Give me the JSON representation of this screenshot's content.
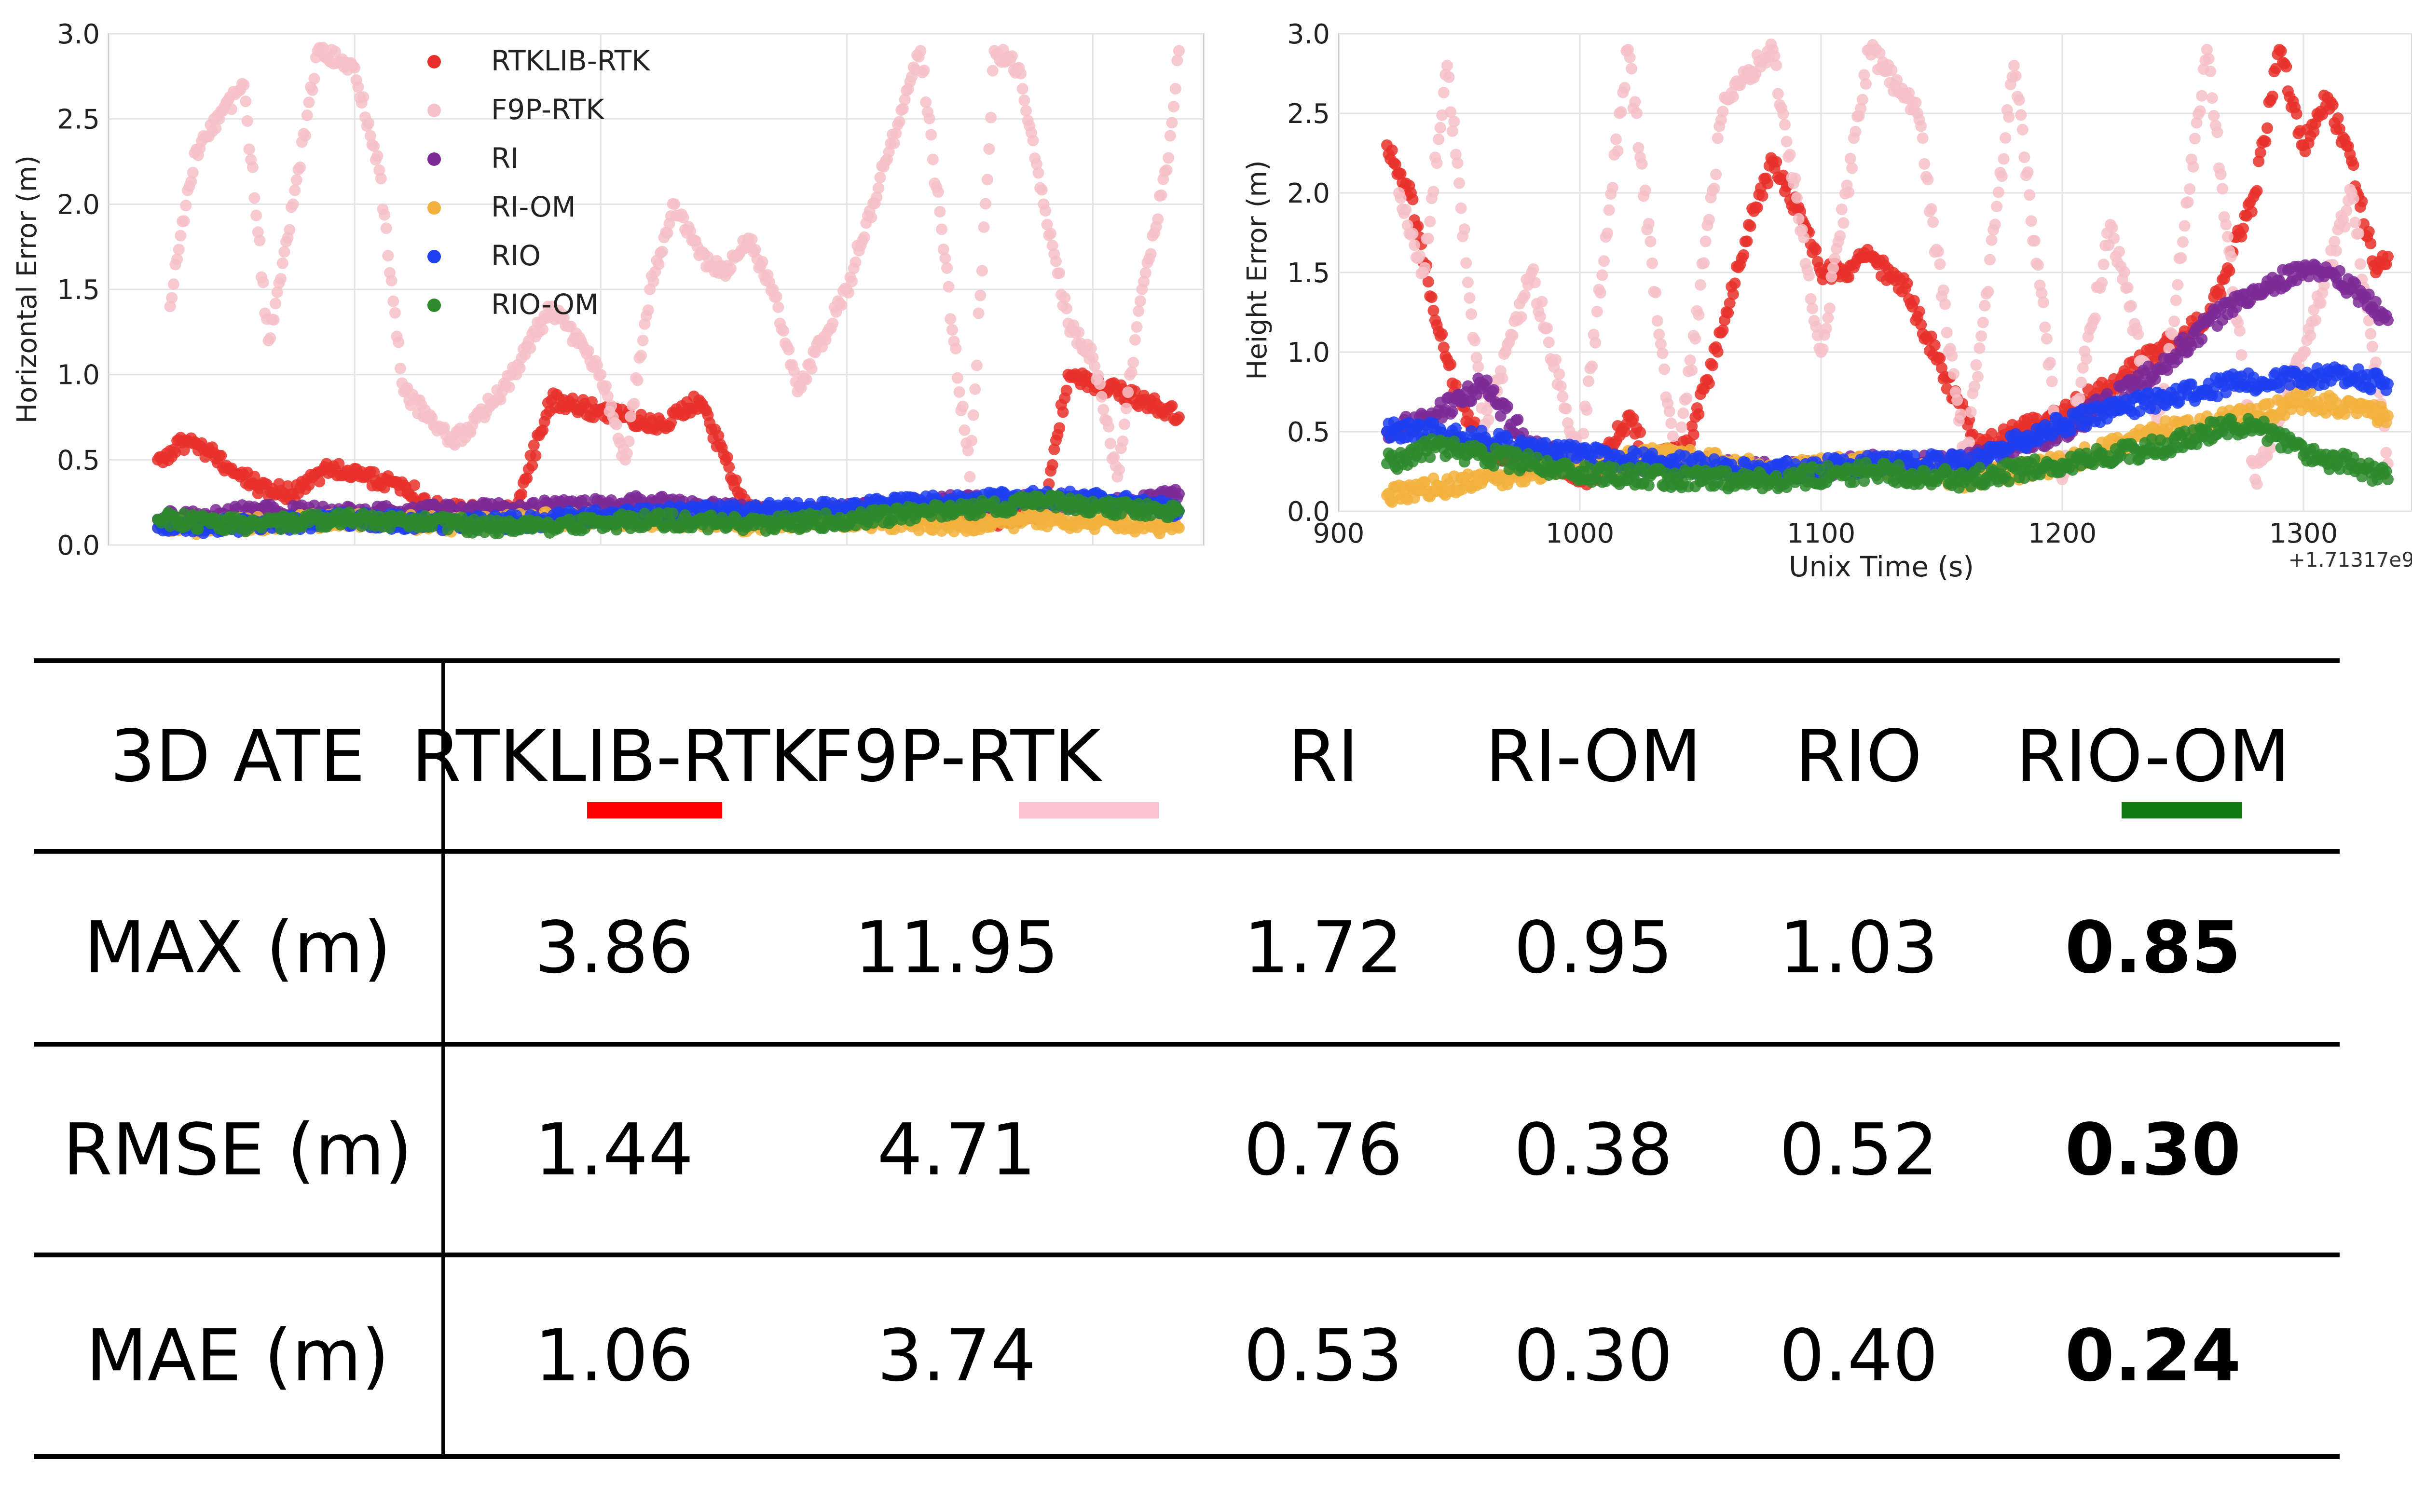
{
  "charts": {
    "series": [
      {
        "name": "RTKLIB-RTK",
        "color": "#e8302a"
      },
      {
        "name": "F9P-RTK",
        "color": "#f6c1c8"
      },
      {
        "name": "RI",
        "color": "#7d2a96"
      },
      {
        "name": "RI-OM",
        "color": "#f2b13d"
      },
      {
        "name": "RIO",
        "color": "#1f3ff0"
      },
      {
        "name": "RIO-OM",
        "color": "#2d8a2d"
      }
    ]
  },
  "chart_data": [
    {
      "type": "scatter",
      "title": "",
      "xlabel": "",
      "ylabel": "Horizontal Error (m)",
      "xlim": [
        900,
        1345
      ],
      "ylim": [
        0.0,
        3.0
      ],
      "yticks": [
        "0.0",
        "0.5",
        "1.0",
        "1.5",
        "2.0",
        "2.5",
        "3.0"
      ],
      "grid": true,
      "legend": "top-center",
      "series": [
        {
          "name": "RTKLIB-RTK",
          "x": [
            920,
            930,
            940,
            950,
            960,
            975,
            990,
            1005,
            1020,
            1035,
            1050,
            1065,
            1080,
            1095,
            1110,
            1125,
            1140,
            1160,
            1180,
            1200,
            1230,
            1260,
            1280,
            1290,
            1300,
            1310,
            1320,
            1330,
            1335
          ],
          "y": [
            0.5,
            0.6,
            0.55,
            0.45,
            0.35,
            0.3,
            0.45,
            0.4,
            0.35,
            0.2,
            0.2,
            0.2,
            0.85,
            0.8,
            0.75,
            0.7,
            0.85,
            0.2,
            0.15,
            0.2,
            0.2,
            0.15,
            0.2,
            1.0,
            0.95,
            0.9,
            0.85,
            0.8,
            0.75
          ]
        },
        {
          "name": "F9P-RTK",
          "x": [
            925,
            935,
            945,
            955,
            965,
            975,
            985,
            1000,
            1010,
            1020,
            1040,
            1060,
            1080,
            1100,
            1110,
            1120,
            1130,
            1140,
            1150,
            1160,
            1170,
            1180,
            1200,
            1230,
            1250,
            1260,
            1270,
            1280,
            1290,
            1300,
            1310,
            1320,
            1330,
            1335
          ],
          "y": [
            1.4,
            2.3,
            2.5,
            2.7,
            1.2,
            2.0,
            2.9,
            2.8,
            2.2,
            0.9,
            0.6,
            0.9,
            1.4,
            1.0,
            0.5,
            1.5,
            2.0,
            1.7,
            1.6,
            1.8,
            1.5,
            0.9,
            1.5,
            2.9,
            0.4,
            2.9,
            2.8,
            2.0,
            1.3,
            1.1,
            0.4,
            1.5,
            2.2,
            2.9
          ]
        },
        {
          "name": "RI",
          "x": [
            920,
            960,
            1000,
            1040,
            1080,
            1120,
            1160,
            1200,
            1240,
            1280,
            1320,
            1335
          ],
          "y": [
            0.15,
            0.2,
            0.18,
            0.2,
            0.22,
            0.25,
            0.2,
            0.2,
            0.25,
            0.25,
            0.25,
            0.3
          ]
        },
        {
          "name": "RI-OM",
          "x": [
            920,
            960,
            1000,
            1040,
            1080,
            1120,
            1160,
            1200,
            1240,
            1280,
            1320,
            1335
          ],
          "y": [
            0.1,
            0.12,
            0.15,
            0.12,
            0.15,
            0.15,
            0.12,
            0.15,
            0.12,
            0.15,
            0.12,
            0.1
          ]
        },
        {
          "name": "RIO",
          "x": [
            920,
            960,
            1000,
            1040,
            1080,
            1120,
            1160,
            1200,
            1240,
            1280,
            1320,
            1335
          ],
          "y": [
            0.1,
            0.12,
            0.15,
            0.12,
            0.15,
            0.18,
            0.2,
            0.22,
            0.25,
            0.28,
            0.25,
            0.2
          ]
        },
        {
          "name": "RIO-OM",
          "x": [
            920,
            960,
            1000,
            1040,
            1080,
            1120,
            1160,
            1200,
            1240,
            1280,
            1320,
            1335
          ],
          "y": [
            0.15,
            0.12,
            0.15,
            0.12,
            0.1,
            0.15,
            0.12,
            0.15,
            0.2,
            0.25,
            0.2,
            0.2
          ]
        }
      ]
    },
    {
      "type": "scatter",
      "title": "",
      "xlabel": "Unix Time (s)",
      "ylabel": "Height Error (m)",
      "x_offset_label": "+1.71317e9",
      "xlim": [
        900,
        1345
      ],
      "ylim": [
        0.0,
        3.0
      ],
      "xticks": [
        "900",
        "1000",
        "1100",
        "1200",
        "1300"
      ],
      "yticks": [
        "0.0",
        "0.5",
        "1.0",
        "1.5",
        "2.0",
        "2.5",
        "3.0"
      ],
      "grid": true,
      "series": [
        {
          "name": "RTKLIB-RTK",
          "x": [
            920,
            930,
            940,
            950,
            960,
            975,
            990,
            1005,
            1020,
            1030,
            1045,
            1060,
            1070,
            1080,
            1090,
            1100,
            1110,
            1120,
            1135,
            1150,
            1165,
            1180,
            1200,
            1230,
            1260,
            1280,
            1290,
            1300,
            1310,
            1320,
            1330,
            1335
          ],
          "y": [
            2.3,
            2.0,
            1.2,
            0.7,
            0.4,
            0.3,
            0.3,
            0.2,
            0.6,
            0.3,
            0.4,
            1.2,
            1.8,
            2.2,
            1.9,
            1.5,
            1.5,
            1.6,
            1.4,
            0.9,
            0.4,
            0.5,
            0.6,
            0.9,
            1.2,
            2.0,
            2.9,
            2.3,
            2.6,
            2.2,
            1.5,
            1.6
          ]
        },
        {
          "name": "F9P-RTK",
          "x": [
            925,
            935,
            945,
            960,
            980,
            1000,
            1020,
            1040,
            1060,
            1080,
            1100,
            1120,
            1140,
            1160,
            1180,
            1200,
            1220,
            1240,
            1260,
            1280,
            1300,
            1320,
            1335
          ],
          "y": [
            2.0,
            1.5,
            2.8,
            0.5,
            1.5,
            0.3,
            2.9,
            0.2,
            2.6,
            2.9,
            1.0,
            2.9,
            2.5,
            0.3,
            2.8,
            0.2,
            1.8,
            0.5,
            2.9,
            0.2,
            1.0,
            2.0,
            0.3
          ]
        },
        {
          "name": "RI",
          "x": [
            920,
            940,
            960,
            980,
            1000,
            1040,
            1080,
            1120,
            1160,
            1200,
            1240,
            1270,
            1290,
            1300,
            1310,
            1320,
            1335
          ],
          "y": [
            0.5,
            0.6,
            0.8,
            0.4,
            0.3,
            0.3,
            0.25,
            0.3,
            0.3,
            0.5,
            0.9,
            1.3,
            1.45,
            1.5,
            1.5,
            1.4,
            1.2
          ]
        },
        {
          "name": "RI-OM",
          "x": [
            920,
            960,
            1000,
            1040,
            1080,
            1120,
            1160,
            1200,
            1240,
            1280,
            1300,
            1320,
            1335
          ],
          "y": [
            0.1,
            0.2,
            0.3,
            0.35,
            0.25,
            0.3,
            0.2,
            0.3,
            0.5,
            0.6,
            0.7,
            0.65,
            0.6
          ]
        },
        {
          "name": "RIO",
          "x": [
            920,
            940,
            960,
            980,
            1000,
            1040,
            1080,
            1120,
            1160,
            1200,
            1240,
            1270,
            1300,
            1320,
            1335
          ],
          "y": [
            0.5,
            0.5,
            0.45,
            0.4,
            0.35,
            0.3,
            0.25,
            0.3,
            0.3,
            0.55,
            0.7,
            0.8,
            0.85,
            0.85,
            0.8
          ]
        },
        {
          "name": "RIO-OM",
          "x": [
            920,
            940,
            960,
            980,
            1000,
            1040,
            1080,
            1120,
            1160,
            1200,
            1240,
            1260,
            1280,
            1300,
            1320,
            1335
          ],
          "y": [
            0.3,
            0.4,
            0.35,
            0.3,
            0.25,
            0.2,
            0.2,
            0.25,
            0.2,
            0.3,
            0.4,
            0.5,
            0.55,
            0.35,
            0.3,
            0.2
          ]
        }
      ]
    },
    {
      "type": "table",
      "corner": "3D ATE",
      "columns": [
        {
          "name": "RTKLIB-RTK",
          "underline": "#ff0000"
        },
        {
          "name": "F9P-RTK",
          "underline": "#fbc1cc"
        },
        {
          "name": "RI",
          "underline": ""
        },
        {
          "name": "RI-OM",
          "underline": ""
        },
        {
          "name": "RIO",
          "underline": ""
        },
        {
          "name": "RIO-OM",
          "underline": "#117a11"
        }
      ],
      "rows": [
        {
          "label": "MAX (m)",
          "values": [
            "3.86",
            "11.95",
            "1.72",
            "0.95",
            "1.03",
            "0.85"
          ]
        },
        {
          "label": "RMSE (m)",
          "values": [
            "1.44",
            "4.71",
            "0.76",
            "0.38",
            "0.52",
            "0.30"
          ]
        },
        {
          "label": "MAE (m)",
          "values": [
            "1.06",
            "3.74",
            "0.53",
            "0.30",
            "0.40",
            "0.24"
          ]
        }
      ],
      "best_column": 5
    }
  ]
}
